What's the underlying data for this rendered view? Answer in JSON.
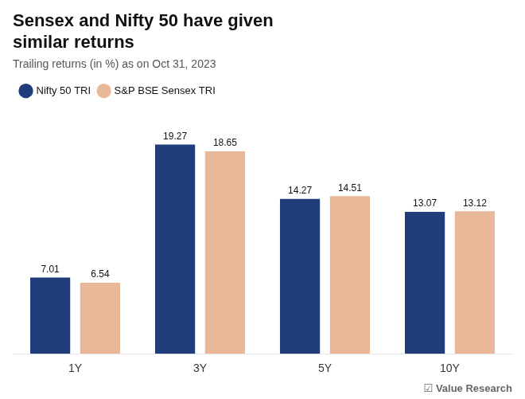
{
  "chart_data": {
    "type": "bar",
    "title": [
      "Sensex and Nifty 50 have given",
      "similar returns"
    ],
    "subtitle": "Trailing returns (in %) as on Oct 31, 2023",
    "categories": [
      "1Y",
      "3Y",
      "5Y",
      "10Y"
    ],
    "series": [
      {
        "name": "Nifty 50 TRI",
        "color": "#1f3d7a",
        "values": [
          7.01,
          19.27,
          14.27,
          13.07
        ]
      },
      {
        "name": "S&P BSE Sensex TRI",
        "color": "#e8b898",
        "values": [
          6.54,
          18.65,
          14.51,
          13.12
        ]
      }
    ],
    "ylim": [
      0,
      23
    ],
    "grid": false,
    "legend": "top left",
    "data_labels": true,
    "tick_labels": "x",
    "annotations": [
      "☑ Value Research"
    ]
  }
}
